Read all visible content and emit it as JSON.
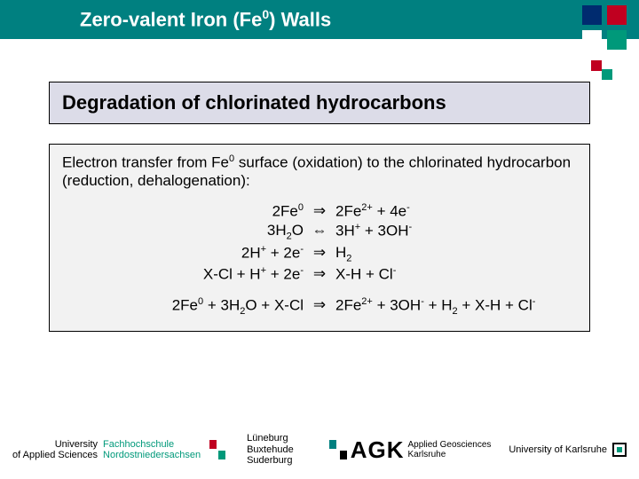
{
  "title_html": "Zero-valent Iron (Fe<sup>0</sup>) Walls",
  "subtitle": "Degradation of chlorinated hydrocarbons",
  "intro_html": "Electron transfer from Fe<sup>0</sup> surface (oxidation) to the chlorinated hydrocarbon (reduction, dehalogenation):",
  "equations": [
    {
      "lhs": "2Fe<sup>0</sup>",
      "arrow": "⇒",
      "rhs": "2Fe<sup>2+</sup> + 4e<sup>-</sup>"
    },
    {
      "lhs": "3H<sub>2</sub>O",
      "arrow": "⇔",
      "rhs": "3H<sup>+</sup> + 3OH<sup>-</sup>"
    },
    {
      "lhs": "2H<sup>+</sup> + 2e<sup>-</sup>",
      "arrow": "⇒",
      "rhs": "H<sub>2</sub>"
    },
    {
      "lhs": "X-Cl + H<sup>+</sup> + 2e<sup>-</sup>",
      "arrow": "⇒",
      "rhs": "X-H + Cl<sup>-</sup>"
    }
  ],
  "summary": {
    "lhs": "2Fe<sup>0</sup> + 3H<sub>2</sub>O + X-Cl",
    "arrow": "⇒",
    "rhs": "2Fe<sup>2+</sup> + 3OH<sup>-</sup> + H<sub>2</sub> + X-H + Cl<sup>-</sup>"
  },
  "footer": {
    "left1a": "University",
    "left1b": "of Applied Sciences",
    "left2a": "Fachhochschule",
    "left2b": "Nordostniedersachsen",
    "mid": "Lüneburg<br>Buxtehude<br>Suderburg",
    "agk": "AGK",
    "agk_sub": "Applied Geosciences<br>Karlsruhe",
    "right": "University of Karlsruhe"
  },
  "colors": {
    "title_bg": "#008080",
    "box_bg": "#dcdce8",
    "text_box_bg": "#f2f2f2",
    "accent_green": "#00997a",
    "accent_red": "#c00020",
    "accent_blue": "#002b6f"
  }
}
